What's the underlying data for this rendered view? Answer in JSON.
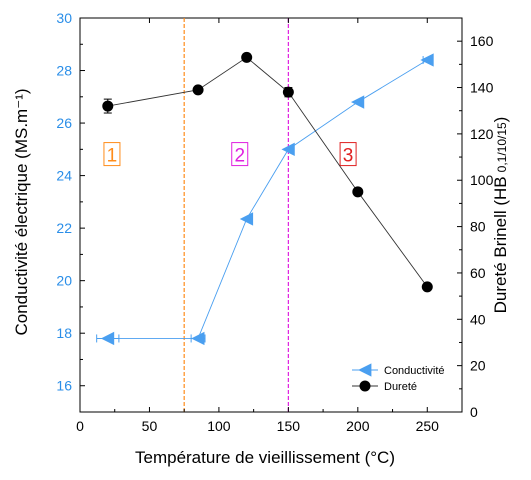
{
  "chart_data": {
    "type": "line",
    "xlabel": "Température de vieillissement (°C)",
    "ylabel_left": "Conductivité électrique (MS.m⁻¹)",
    "ylabel_right_main": "Dureté Brinell (HB",
    "ylabel_right_sub": "0,1/10/15",
    "ylabel_right_close": ")",
    "xlim": [
      0,
      275
    ],
    "ylim_left": [
      15,
      30
    ],
    "ylim_right": [
      0,
      170
    ],
    "x_ticks": [
      "0",
      "50",
      "100",
      "150",
      "200",
      "250"
    ],
    "x_tick_values": [
      0,
      50,
      100,
      150,
      200,
      250
    ],
    "y_left_ticks": [
      "16",
      "18",
      "20",
      "22",
      "24",
      "26",
      "28",
      "30"
    ],
    "y_left_tick_values": [
      16,
      18,
      20,
      22,
      24,
      26,
      28,
      30
    ],
    "y_right_ticks": [
      "0",
      "20",
      "40",
      "60",
      "80",
      "100",
      "120",
      "140",
      "160"
    ],
    "y_right_tick_values": [
      0,
      20,
      40,
      60,
      80,
      100,
      120,
      140,
      160
    ],
    "series": [
      {
        "name": "Conductivité",
        "axis": "left",
        "color": "#4a9ff0",
        "marker": "left-triangle",
        "x": [
          20,
          85,
          120,
          150,
          200,
          250
        ],
        "y": [
          17.8,
          17.8,
          22.35,
          25.0,
          26.8,
          28.4
        ],
        "xerr": [
          8,
          5,
          0,
          0,
          0,
          3
        ]
      },
      {
        "name": "Dureté",
        "axis": "right",
        "color": "#000000",
        "marker": "circle",
        "x": [
          20,
          85,
          120,
          150,
          200,
          250
        ],
        "y": [
          132,
          139,
          153,
          138,
          95,
          54
        ],
        "yerr": [
          3,
          0,
          1.5,
          2,
          0,
          0
        ]
      }
    ],
    "region_lines": [
      {
        "x": 75,
        "color": "#ff8c1a"
      },
      {
        "x": 150,
        "color": "#e020e0"
      }
    ],
    "region_labels": [
      {
        "text": "1",
        "x": 23,
        "y_left": 24.8,
        "color": "#ff8c1a"
      },
      {
        "text": "2",
        "x": 115,
        "y_left": 24.8,
        "color": "#e020e0"
      },
      {
        "text": "3",
        "x": 193,
        "y_left": 24.8,
        "color": "#e02020"
      }
    ],
    "legend_position": "bottom-right",
    "left_axis_color": "#2a8ee8",
    "grid": false
  }
}
